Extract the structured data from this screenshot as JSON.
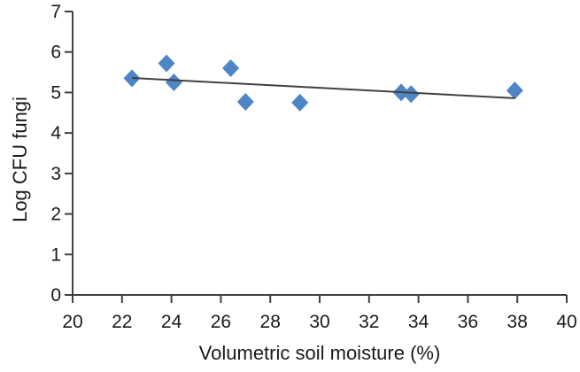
{
  "chart_data": {
    "type": "scatter",
    "title": "",
    "xlabel": "Volumetric soil moisture (%)",
    "ylabel": "Log CFU fungi",
    "xlim": [
      20,
      40
    ],
    "ylim": [
      0,
      7
    ],
    "xticks": [
      20,
      22,
      24,
      26,
      28,
      30,
      32,
      34,
      36,
      38,
      40
    ],
    "yticks": [
      0,
      1,
      2,
      3,
      4,
      5,
      6,
      7
    ],
    "grid": false,
    "legend": false,
    "points": [
      {
        "x": 22.4,
        "y": 5.35
      },
      {
        "x": 23.8,
        "y": 5.72
      },
      {
        "x": 24.1,
        "y": 5.25
      },
      {
        "x": 26.4,
        "y": 5.6
      },
      {
        "x": 27.0,
        "y": 4.77
      },
      {
        "x": 29.2,
        "y": 4.75
      },
      {
        "x": 33.3,
        "y": 5.0
      },
      {
        "x": 33.7,
        "y": 4.96
      },
      {
        "x": 37.9,
        "y": 5.05
      }
    ],
    "trendline": {
      "x1": 22.4,
      "y1": 5.36,
      "x2": 37.9,
      "y2": 4.86
    },
    "marker": {
      "shape": "diamond",
      "color": "#4d85c5",
      "width": 19,
      "height": 20
    },
    "trendline_color": "#404040",
    "axis_color": "#404040",
    "text_color": "#1a1a1a"
  }
}
